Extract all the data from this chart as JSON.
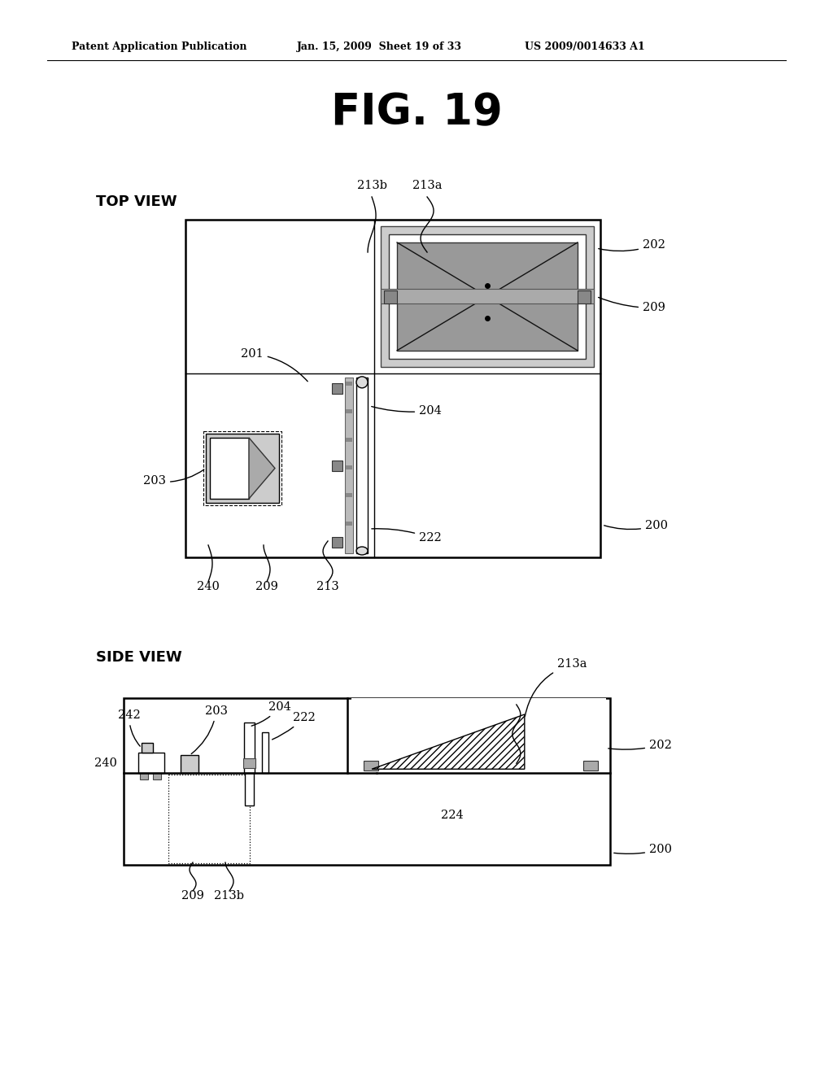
{
  "bg_color": "#ffffff",
  "header_left": "Patent Application Publication",
  "header_mid": "Jan. 15, 2009  Sheet 19 of 33",
  "header_right": "US 2009/0014633 A1",
  "fig_title": "FIG. 19",
  "gray_light": "#cccccc",
  "gray_mid": "#aaaaaa",
  "gray_dark": "#888888",
  "gray_darker": "#666666"
}
